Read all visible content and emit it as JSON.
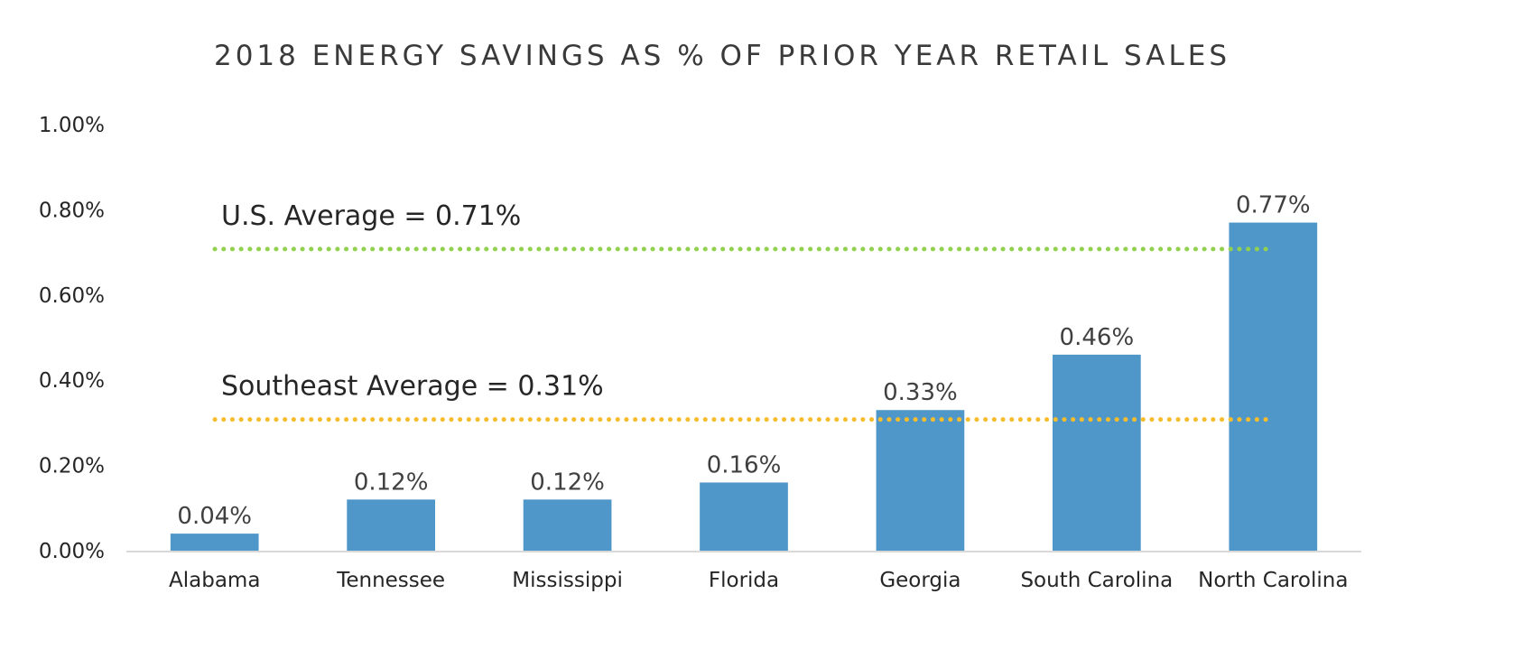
{
  "chart_data": {
    "type": "bar",
    "title": "2018 ENERGY SAVINGS AS % OF PRIOR YEAR RETAIL SALES",
    "xlabel": "",
    "ylabel": "",
    "categories": [
      "Alabama",
      "Tennessee",
      "Mississippi",
      "Florida",
      "Georgia",
      "South Carolina",
      "North Carolina"
    ],
    "values": [
      0.04,
      0.12,
      0.12,
      0.16,
      0.33,
      0.46,
      0.77
    ],
    "data_labels": [
      "0.04%",
      "0.12%",
      "0.12%",
      "0.16%",
      "0.33%",
      "0.46%",
      "0.77%"
    ],
    "ylim": [
      0,
      1.0
    ],
    "yticks": [
      0,
      0.2,
      0.4,
      0.6,
      0.8,
      1.0
    ],
    "ytick_labels": [
      "0.00%",
      "0.20%",
      "0.40%",
      "0.60%",
      "0.80%",
      "1.00%"
    ],
    "grid": false,
    "legend": "none",
    "bar_color": "#4f97c8",
    "reference_lines": [
      {
        "name": "us-average",
        "label": "U.S. Average = 0.71%",
        "value": 0.71,
        "color": "#92d050",
        "style": "dotted"
      },
      {
        "name": "southeast-average",
        "label": "Southeast Average = 0.31%",
        "value": 0.31,
        "color": "#f7bd2e",
        "style": "dotted"
      }
    ]
  }
}
